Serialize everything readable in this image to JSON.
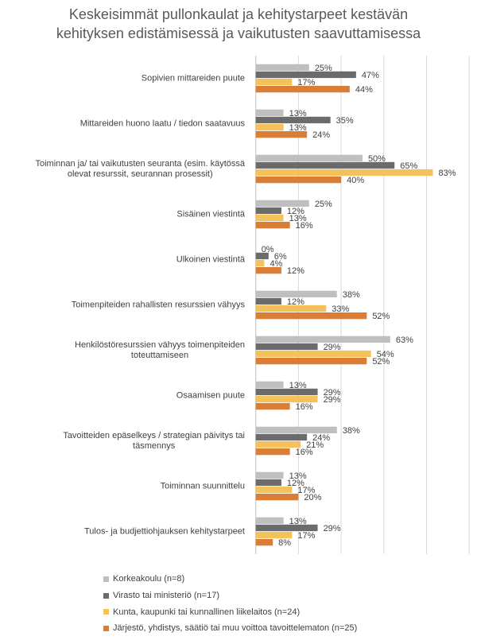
{
  "chart_data": {
    "type": "bar",
    "orientation": "horizontal",
    "title": [
      "Keskeisimmät pullonkaulat ja kehitystarpeet kestävän",
      "kehityksen edistämisessä ja vaikutusten saavuttamisessa"
    ],
    "xlabel": "",
    "ylabel": "",
    "xlim": [
      0,
      100
    ],
    "grid": true,
    "gridlines": [
      0,
      20,
      40,
      60,
      80,
      100
    ],
    "legend_position": "bottom",
    "categories": [
      [
        "Sopivien mittareiden puute"
      ],
      [
        "Mittareiden huono laatu / tiedon saatavuus"
      ],
      [
        "Toiminnan ja/ tai vaikutusten seuranta (esim. käytössä",
        "olevat resurssit, seurannan prosessit)"
      ],
      [
        "Sisäinen viestintä"
      ],
      [
        "Ulkoinen viestintä"
      ],
      [
        "Toimenpiteiden rahallisten resurssien vähyys"
      ],
      [
        "Henkilöstöresurssien vähyys toimenpiteiden",
        "toteuttamiseen"
      ],
      [
        "Osaamisen puute"
      ],
      [
        "Tavoitteiden epäselkeys / strategian päivitys tai",
        "täsmennys"
      ],
      [
        "Toiminnan suunnittelu"
      ],
      [
        "Tulos- ja budjettiohjauksen kehitystarpeet"
      ]
    ],
    "series": [
      {
        "name": "Korkeakoulu (n=8)",
        "color": "#bfbfbf",
        "values": [
          25,
          13,
          50,
          25,
          0,
          38,
          63,
          13,
          38,
          13,
          13
        ]
      },
      {
        "name": "Virasto tai ministeriö (n=17)",
        "color": "#6b6b6b",
        "values": [
          47,
          35,
          65,
          12,
          6,
          12,
          29,
          29,
          24,
          12,
          29
        ]
      },
      {
        "name": "Kunta, kaupunki tai kunnallinen liikelaitos (n=24)",
        "color": "#f4c15b",
        "values": [
          17,
          13,
          83,
          13,
          4,
          33,
          54,
          29,
          21,
          17,
          17
        ]
      },
      {
        "name": "Järjestö, yhdistys, säätiö tai muu voittoa tavoittelematon (n=25)",
        "color": "#d97d37",
        "values": [
          44,
          24,
          40,
          16,
          12,
          52,
          52,
          16,
          16,
          20,
          8
        ]
      }
    ],
    "value_suffix": "%"
  }
}
